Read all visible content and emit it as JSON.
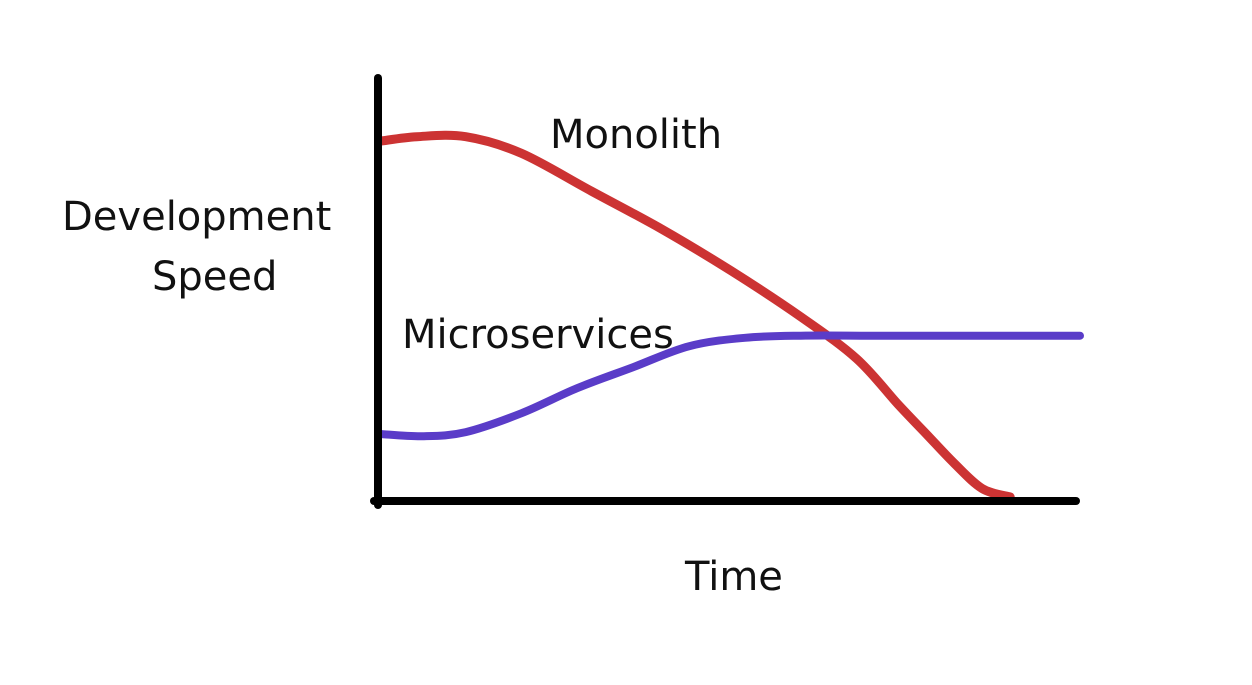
{
  "chart_data": {
    "type": "line",
    "title": "",
    "xlabel": "Time",
    "ylabel": [
      "Development",
      "Speed"
    ],
    "xlim": [
      0,
      100
    ],
    "ylim": [
      0,
      100
    ],
    "grid": false,
    "ticks": false,
    "series": [
      {
        "name": "Monolith",
        "color": "#cc3333",
        "x": [
          0,
          5,
          12,
          20,
          30,
          40,
          50,
          60,
          68,
          74,
          78,
          82,
          86,
          90
        ],
        "y": [
          85,
          86,
          86,
          82,
          73,
          64,
          54,
          43,
          33,
          22,
          15,
          8,
          2,
          0
        ]
      },
      {
        "name": "Microservices",
        "color": "#5a3cc8",
        "x": [
          0,
          6,
          12,
          20,
          28,
          36,
          44,
          52,
          60,
          70,
          80,
          90,
          100
        ],
        "y": [
          15,
          14.5,
          15.5,
          20,
          26,
          31,
          36,
          38,
          38.5,
          38.5,
          38.5,
          38.5,
          38.5
        ]
      }
    ]
  }
}
